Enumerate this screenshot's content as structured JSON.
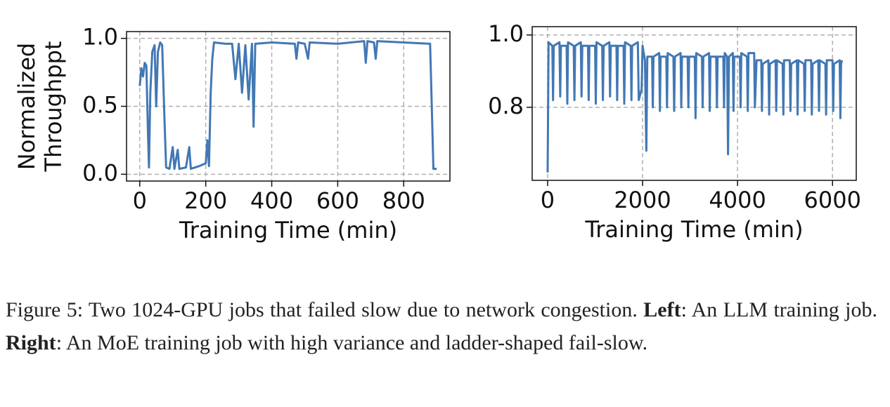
{
  "chart_data": [
    {
      "type": "line",
      "ylabel": [
        "Normalized",
        "Throughppt"
      ],
      "xlabel": "Training Time (min)",
      "color": "#4278b4",
      "grid": true,
      "xlim": [
        -40,
        940
      ],
      "ylim": [
        -0.05,
        1.05
      ],
      "xticks": [
        0,
        200,
        400,
        600,
        800
      ],
      "yticks": [
        {
          "value": 0,
          "label": "0.0"
        },
        0.5,
        {
          "value": 1,
          "label": "1.0"
        }
      ],
      "x": [
        0,
        5,
        10,
        15,
        20,
        25,
        28,
        32,
        38,
        45,
        50,
        55,
        62,
        68,
        75,
        80,
        90,
        100,
        105,
        115,
        120,
        140,
        150,
        155,
        180,
        200,
        205,
        210,
        215,
        220,
        225,
        260,
        280,
        290,
        300,
        310,
        320,
        330,
        340,
        345,
        350,
        400,
        470,
        475,
        480,
        500,
        510,
        515,
        600,
        680,
        685,
        690,
        710,
        715,
        720,
        800,
        880,
        885,
        890,
        900
      ],
      "values": [
        0.65,
        0.78,
        0.72,
        0.82,
        0.8,
        0.3,
        0.05,
        0.6,
        0.9,
        0.95,
        0.5,
        0.9,
        0.97,
        0.95,
        0.4,
        0.05,
        0.04,
        0.2,
        0.04,
        0.18,
        0.04,
        0.05,
        0.2,
        0.04,
        0.06,
        0.08,
        0.25,
        0.06,
        0.6,
        0.85,
        0.97,
        0.96,
        0.96,
        0.7,
        0.96,
        0.6,
        0.95,
        0.55,
        0.96,
        0.35,
        0.96,
        0.97,
        0.96,
        0.85,
        0.97,
        0.96,
        0.85,
        0.97,
        0.96,
        0.98,
        0.82,
        0.98,
        0.97,
        0.85,
        0.98,
        0.97,
        0.96,
        0.5,
        0.04,
        0.04
      ]
    },
    {
      "type": "line",
      "xlabel": "Training Time (min)",
      "color": "#4278b4",
      "grid": true,
      "xlim": [
        -325,
        6500
      ],
      "ylim": [
        0.598,
        1.023
      ],
      "xticks": [
        0,
        2000,
        4000,
        6000
      ],
      "yticks": [
        0.8,
        {
          "value": 1,
          "label": "1.0"
        }
      ],
      "x": [
        0,
        20,
        100,
        115,
        130,
        250,
        265,
        280,
        400,
        415,
        430,
        550,
        565,
        580,
        700,
        715,
        730,
        850,
        865,
        880,
        1000,
        1015,
        1030,
        1150,
        1165,
        1180,
        1300,
        1315,
        1330,
        1450,
        1465,
        1480,
        1600,
        1615,
        1630,
        1750,
        1765,
        1780,
        1900,
        1920,
        1980,
        2000,
        2050,
        2080,
        2100,
        2200,
        2215,
        2230,
        2350,
        2365,
        2380,
        2500,
        2515,
        2530,
        2650,
        2665,
        2680,
        2800,
        2815,
        2830,
        2950,
        2965,
        2980,
        3100,
        3115,
        3130,
        3250,
        3265,
        3280,
        3400,
        3415,
        3430,
        3550,
        3565,
        3580,
        3700,
        3715,
        3730,
        3780,
        3800,
        3820,
        3900,
        3915,
        3930,
        4050,
        4065,
        4080,
        4200,
        4215,
        4230,
        4350,
        4365,
        4400,
        4500,
        4515,
        4530,
        4650,
        4665,
        4680,
        4800,
        4815,
        4830,
        4950,
        4965,
        4980,
        5100,
        5115,
        5130,
        5250,
        5265,
        5280,
        5400,
        5415,
        5430,
        5550,
        5565,
        5580,
        5700,
        5715,
        5730,
        5850,
        5865,
        5880,
        6000,
        6015,
        6030,
        6150,
        6165,
        6180,
        6200
      ],
      "values": [
        0.62,
        0.98,
        0.97,
        0.82,
        0.97,
        0.98,
        0.83,
        0.97,
        0.97,
        0.81,
        0.98,
        0.97,
        0.82,
        0.97,
        0.98,
        0.83,
        0.97,
        0.97,
        0.82,
        0.97,
        0.97,
        0.81,
        0.98,
        0.97,
        0.82,
        0.97,
        0.98,
        0.83,
        0.97,
        0.97,
        0.82,
        0.97,
        0.97,
        0.81,
        0.98,
        0.97,
        0.82,
        0.97,
        0.98,
        0.82,
        0.85,
        0.97,
        0.93,
        0.68,
        0.94,
        0.94,
        0.8,
        0.94,
        0.95,
        0.79,
        0.94,
        0.94,
        0.8,
        0.95,
        0.94,
        0.79,
        0.94,
        0.95,
        0.8,
        0.94,
        0.94,
        0.8,
        0.94,
        0.94,
        0.77,
        0.95,
        0.94,
        0.8,
        0.94,
        0.95,
        0.79,
        0.94,
        0.94,
        0.8,
        0.94,
        0.94,
        0.8,
        0.95,
        0.94,
        0.67,
        0.94,
        0.95,
        0.79,
        0.94,
        0.94,
        0.8,
        0.95,
        0.94,
        0.79,
        0.95,
        0.95,
        0.8,
        0.93,
        0.93,
        0.79,
        0.92,
        0.93,
        0.78,
        0.92,
        0.93,
        0.79,
        0.93,
        0.92,
        0.78,
        0.93,
        0.93,
        0.79,
        0.92,
        0.93,
        0.78,
        0.93,
        0.92,
        0.79,
        0.93,
        0.93,
        0.78,
        0.92,
        0.93,
        0.79,
        0.93,
        0.92,
        0.78,
        0.93,
        0.93,
        0.79,
        0.92,
        0.93,
        0.77,
        0.92,
        0.93
      ]
    }
  ],
  "caption": {
    "segments": [
      {
        "text": "Figure 5: Two 1024-GPU jobs that failed slow due to network congestion. ",
        "bold": false
      },
      {
        "text": "Left",
        "bold": true
      },
      {
        "text": ": An LLM training job. ",
        "bold": false
      },
      {
        "text": "Right",
        "bold": true
      },
      {
        "text": ": An MoE training job with high variance and ladder-shaped fail-slow.",
        "bold": false
      }
    ]
  }
}
